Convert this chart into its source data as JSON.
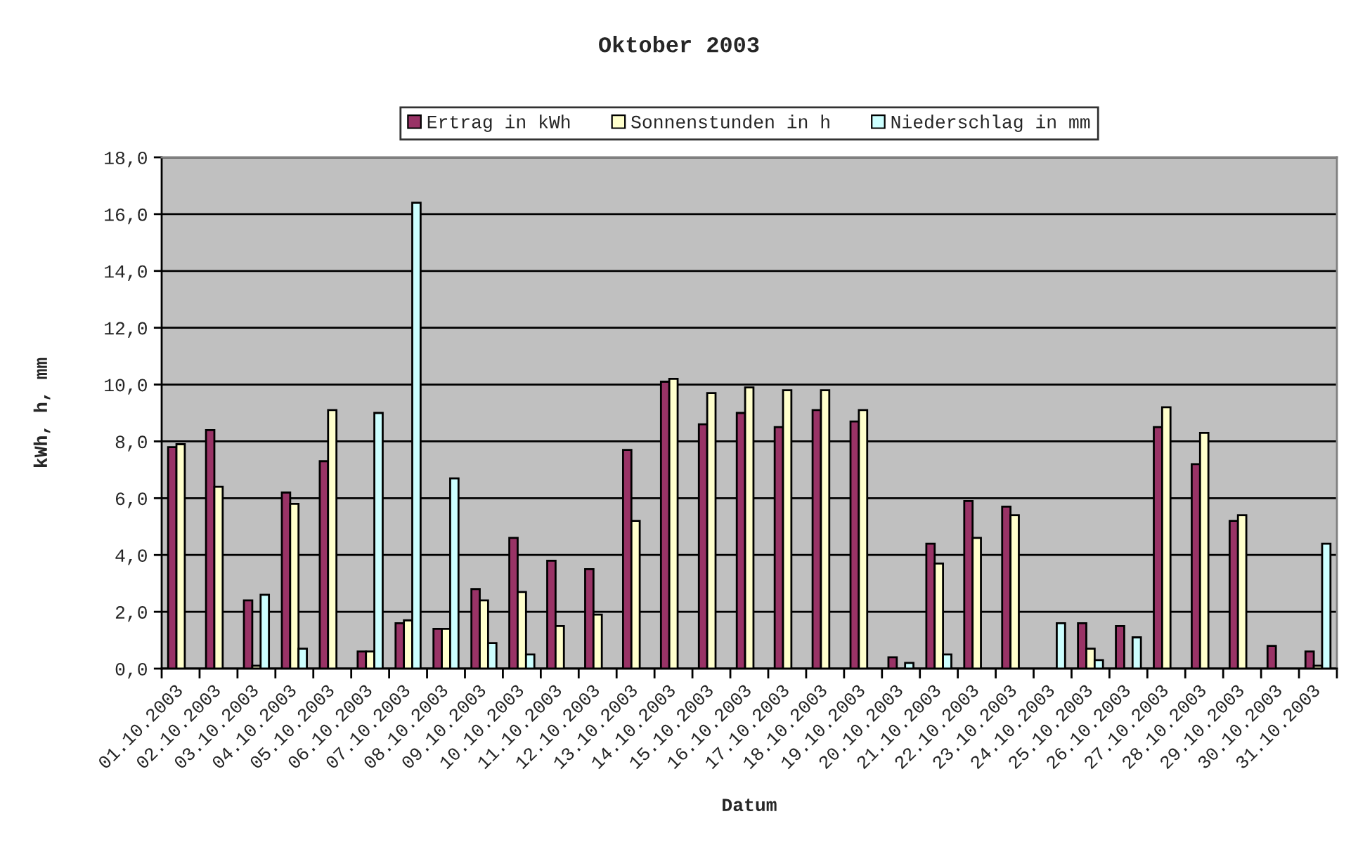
{
  "chart_data": {
    "type": "bar",
    "title": "Oktober 2003",
    "xlabel": "Datum",
    "ylabel": "kWh, h, mm",
    "categories": [
      "01.10.2003",
      "02.10.2003",
      "03.10.2003",
      "04.10.2003",
      "05.10.2003",
      "06.10.2003",
      "07.10.2003",
      "08.10.2003",
      "09.10.2003",
      "10.10.2003",
      "11.10.2003",
      "12.10.2003",
      "13.10.2003",
      "14.10.2003",
      "15.10.2003",
      "16.10.2003",
      "17.10.2003",
      "18.10.2003",
      "19.10.2003",
      "20.10.2003",
      "21.10.2003",
      "22.10.2003",
      "23.10.2003",
      "24.10.2003",
      "25.10.2003",
      "26.10.2003",
      "27.10.2003",
      "28.10.2003",
      "29.10.2003",
      "30.10.2003",
      "31.10.2003"
    ],
    "series": [
      {
        "name": "Ertrag in kWh",
        "color": "#993366",
        "values": [
          7.8,
          8.4,
          2.4,
          6.2,
          7.3,
          0.6,
          1.6,
          1.4,
          2.8,
          4.6,
          3.8,
          3.5,
          7.7,
          10.1,
          8.6,
          9.0,
          8.5,
          9.1,
          8.7,
          0.4,
          4.4,
          5.9,
          5.7,
          null,
          1.6,
          1.5,
          8.5,
          7.2,
          5.2,
          0.8,
          0.6
        ]
      },
      {
        "name": "Sonnenstunden in h",
        "color": "#ffffcc",
        "values": [
          7.9,
          6.4,
          0.1,
          5.8,
          9.1,
          0.6,
          1.7,
          1.4,
          2.4,
          2.7,
          1.5,
          1.9,
          5.2,
          10.2,
          9.7,
          9.9,
          9.8,
          9.8,
          9.1,
          null,
          3.7,
          4.6,
          5.4,
          null,
          0.7,
          null,
          9.2,
          8.3,
          5.4,
          null,
          0.1
        ]
      },
      {
        "name": "Niederschlag in mm",
        "color": "#ccffff",
        "values": [
          null,
          null,
          2.6,
          0.7,
          null,
          9.0,
          16.4,
          6.7,
          0.9,
          0.5,
          null,
          null,
          null,
          null,
          null,
          null,
          null,
          null,
          null,
          0.2,
          0.5,
          null,
          null,
          1.6,
          0.3,
          1.1,
          null,
          null,
          null,
          null,
          4.4
        ]
      }
    ],
    "ylim": [
      0,
      18
    ],
    "yticks": [
      {
        "value": 0,
        "label": "0,0"
      },
      {
        "value": 2,
        "label": "2,0"
      },
      {
        "value": 4,
        "label": "4,0"
      },
      {
        "value": 6,
        "label": "6,0"
      },
      {
        "value": 8,
        "label": "8,0"
      },
      {
        "value": 10,
        "label": "10,0"
      },
      {
        "value": 12,
        "label": "12,0"
      },
      {
        "value": 14,
        "label": "14,0"
      },
      {
        "value": 16,
        "label": "16,0"
      },
      {
        "value": 18,
        "label": "18,0"
      }
    ],
    "grid": "y",
    "legend": "top"
  }
}
